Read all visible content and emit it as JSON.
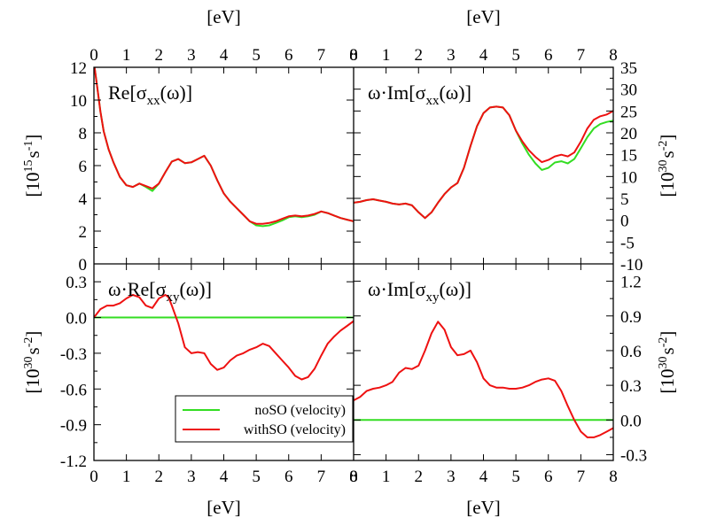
{
  "colors": {
    "noSO": "#33dd22",
    "withSO": "#ee1111",
    "zero": "#22cc22"
  },
  "legend": {
    "position": "bottom-right of lower-left panel",
    "entries": [
      {
        "label": "noSO (velocity)",
        "color": "#33dd22"
      },
      {
        "label": "withSO (velocity)",
        "color": "#ee1111"
      }
    ]
  },
  "chart_data": [
    {
      "type": "line",
      "panel": "top-left",
      "label": {
        "pre": "Re[σ",
        "sub": "xx",
        "post": "(ω)]"
      },
      "xlabel": "[eV]",
      "xlim": [
        0,
        8
      ],
      "xticks": [
        "0",
        "1",
        "2",
        "3",
        "4",
        "5",
        "6",
        "7",
        "8"
      ],
      "ylim": [
        0,
        12
      ],
      "yticks": [
        "0",
        "2",
        "4",
        "6",
        "8",
        "10",
        "12"
      ],
      "ylabel": {
        "pre": "[10",
        "sup1": "15",
        "mid": "s",
        "sup2": "-1",
        "post": "]"
      },
      "series": [
        {
          "name": "noSO (velocity)",
          "x": [
            0.02,
            0.1,
            0.2,
            0.3,
            0.45,
            0.6,
            0.8,
            1.0,
            1.2,
            1.4,
            1.6,
            1.8,
            2.0,
            2.2,
            2.4,
            2.6,
            2.8,
            3.0,
            3.2,
            3.4,
            3.6,
            3.8,
            4.0,
            4.2,
            4.4,
            4.6,
            4.8,
            5.0,
            5.2,
            5.4,
            5.6,
            5.8,
            6.0,
            6.2,
            6.4,
            6.6,
            6.8,
            7.0,
            7.2,
            7.4,
            7.6,
            7.8,
            8.0
          ],
          "y": [
            12.0,
            10.8,
            9.3,
            8.1,
            7.0,
            6.2,
            5.3,
            4.8,
            4.7,
            4.9,
            4.7,
            4.45,
            4.9,
            5.6,
            6.25,
            6.4,
            6.15,
            6.2,
            6.4,
            6.6,
            6.0,
            5.1,
            4.3,
            3.8,
            3.4,
            3.0,
            2.6,
            2.35,
            2.3,
            2.35,
            2.5,
            2.65,
            2.85,
            2.9,
            2.85,
            2.9,
            3.0,
            3.2,
            3.1,
            2.95,
            2.8,
            2.7,
            2.6
          ]
        },
        {
          "name": "withSO (velocity)",
          "x": [
            0.02,
            0.1,
            0.2,
            0.3,
            0.45,
            0.6,
            0.8,
            1.0,
            1.2,
            1.4,
            1.6,
            1.8,
            2.0,
            2.2,
            2.4,
            2.6,
            2.8,
            3.0,
            3.2,
            3.4,
            3.6,
            3.8,
            4.0,
            4.2,
            4.4,
            4.6,
            4.8,
            5.0,
            5.2,
            5.4,
            5.6,
            5.8,
            6.0,
            6.2,
            6.4,
            6.6,
            6.8,
            7.0,
            7.2,
            7.4,
            7.6,
            7.8,
            8.0
          ],
          "y": [
            12.0,
            10.8,
            9.3,
            8.1,
            7.0,
            6.2,
            5.3,
            4.8,
            4.7,
            4.9,
            4.75,
            4.6,
            4.9,
            5.6,
            6.25,
            6.4,
            6.15,
            6.2,
            6.4,
            6.6,
            6.0,
            5.1,
            4.3,
            3.8,
            3.4,
            3.0,
            2.6,
            2.45,
            2.45,
            2.5,
            2.6,
            2.75,
            2.9,
            2.95,
            2.9,
            2.95,
            3.05,
            3.2,
            3.1,
            2.95,
            2.8,
            2.7,
            2.6
          ]
        }
      ]
    },
    {
      "type": "line",
      "panel": "top-right",
      "label": {
        "pre": "ω·Im[σ",
        "sub": "xx",
        "post": "(ω)]"
      },
      "xlabel": "[eV]",
      "xlim": [
        0,
        8
      ],
      "xticks": [
        "0",
        "1",
        "2",
        "3",
        "4",
        "5",
        "6",
        "7",
        "8"
      ],
      "ylim": [
        -10,
        35
      ],
      "yticks": [
        "-10",
        "-5",
        "0",
        "5",
        "10",
        "15",
        "20",
        "25",
        "30",
        "35"
      ],
      "ylabel": {
        "pre": "[10",
        "sup1": "30",
        "mid": "s",
        "sup2": "-2",
        "post": "]"
      },
      "series": [
        {
          "name": "noSO (velocity)",
          "x": [
            0,
            0.2,
            0.4,
            0.6,
            0.8,
            1.0,
            1.2,
            1.4,
            1.6,
            1.8,
            2.0,
            2.2,
            2.4,
            2.6,
            2.8,
            3.0,
            3.2,
            3.4,
            3.6,
            3.8,
            4.0,
            4.2,
            4.4,
            4.6,
            4.8,
            5.0,
            5.2,
            5.4,
            5.6,
            5.8,
            6.0,
            6.2,
            6.4,
            6.6,
            6.8,
            7.0,
            7.2,
            7.4,
            7.6,
            7.8,
            8.0
          ],
          "y": [
            4.0,
            4.2,
            4.6,
            4.8,
            4.5,
            4.2,
            3.8,
            3.6,
            3.8,
            3.4,
            1.8,
            0.5,
            1.8,
            4.0,
            6.0,
            7.5,
            8.5,
            12.0,
            17.0,
            21.5,
            24.5,
            25.8,
            26.0,
            25.8,
            24.0,
            20.5,
            17.5,
            15.0,
            13.0,
            11.5,
            12.0,
            13.2,
            13.5,
            13.0,
            14.0,
            16.5,
            19.0,
            21.0,
            22.0,
            22.5,
            22.8
          ]
        },
        {
          "name": "withSO (velocity)",
          "x": [
            0,
            0.2,
            0.4,
            0.6,
            0.8,
            1.0,
            1.2,
            1.4,
            1.6,
            1.8,
            2.0,
            2.2,
            2.4,
            2.6,
            2.8,
            3.0,
            3.2,
            3.4,
            3.6,
            3.8,
            4.0,
            4.2,
            4.4,
            4.6,
            4.8,
            5.0,
            5.2,
            5.4,
            5.6,
            5.8,
            6.0,
            6.2,
            6.4,
            6.6,
            6.8,
            7.0,
            7.2,
            7.4,
            7.6,
            7.8,
            8.0
          ],
          "y": [
            4.0,
            4.2,
            4.6,
            4.8,
            4.5,
            4.2,
            3.8,
            3.6,
            3.8,
            3.4,
            1.8,
            0.5,
            1.8,
            4.0,
            6.0,
            7.5,
            8.5,
            12.0,
            17.0,
            21.5,
            24.5,
            25.8,
            26.0,
            25.8,
            24.0,
            20.5,
            18.0,
            16.0,
            14.5,
            13.3,
            13.8,
            14.6,
            15.0,
            14.6,
            15.5,
            18.0,
            21.0,
            23.0,
            23.8,
            24.2,
            25.0
          ]
        }
      ]
    },
    {
      "type": "line",
      "panel": "bottom-left",
      "label": {
        "pre": "ω·Re[σ",
        "sub": "xy",
        "post": "(ω)]"
      },
      "xlabel": "[eV]",
      "xlim": [
        0,
        8
      ],
      "xticks": [
        "0",
        "1",
        "2",
        "3",
        "4",
        "5",
        "6",
        "7",
        "8"
      ],
      "ylim": [
        -1.2,
        0.45
      ],
      "yticks": [
        "-1.2",
        "-0.9",
        "-0.6",
        "-0.3",
        "0.0",
        "0.3"
      ],
      "ylabel": {
        "pre": "[10",
        "sup1": "30",
        "mid": "s",
        "sup2": "-2",
        "post": "]"
      },
      "series": [
        {
          "name": "noSO (velocity)",
          "x": [
            0,
            8
          ],
          "y": [
            0.0,
            0.0
          ]
        },
        {
          "name": "withSO (velocity)",
          "x": [
            0,
            0.2,
            0.4,
            0.6,
            0.8,
            1.0,
            1.2,
            1.4,
            1.6,
            1.8,
            2.0,
            2.2,
            2.3,
            2.4,
            2.6,
            2.8,
            3.0,
            3.2,
            3.4,
            3.6,
            3.8,
            4.0,
            4.2,
            4.4,
            4.6,
            4.8,
            5.0,
            5.2,
            5.4,
            5.6,
            5.8,
            6.0,
            6.2,
            6.4,
            6.6,
            6.8,
            7.0,
            7.2,
            7.4,
            7.6,
            7.8,
            8.0
          ],
          "y": [
            0.0,
            0.07,
            0.1,
            0.1,
            0.12,
            0.16,
            0.19,
            0.17,
            0.1,
            0.08,
            0.16,
            0.19,
            0.17,
            0.1,
            -0.05,
            -0.25,
            -0.3,
            -0.29,
            -0.3,
            -0.39,
            -0.44,
            -0.42,
            -0.36,
            -0.32,
            -0.3,
            -0.27,
            -0.25,
            -0.22,
            -0.24,
            -0.3,
            -0.36,
            -0.42,
            -0.49,
            -0.52,
            -0.5,
            -0.43,
            -0.32,
            -0.22,
            -0.16,
            -0.11,
            -0.07,
            -0.03
          ]
        }
      ]
    },
    {
      "type": "line",
      "panel": "bottom-right",
      "label": {
        "pre": "ω·Im[σ",
        "sub": "xy",
        "post": "(ω)]"
      },
      "xlabel": "[eV]",
      "xlim": [
        0,
        8
      ],
      "xticks": [
        "0",
        "1",
        "2",
        "3",
        "4",
        "5",
        "6",
        "7",
        "8"
      ],
      "ylim": [
        -0.35,
        1.35
      ],
      "yticks": [
        "-0.3",
        "0.0",
        "0.3",
        "0.6",
        "0.9",
        "1.2"
      ],
      "ylabel": {
        "pre": "[10",
        "sup1": "30",
        "mid": "s",
        "sup2": "-2",
        "post": "]"
      },
      "series": [
        {
          "name": "noSO (velocity)",
          "x": [
            0,
            8
          ],
          "y": [
            0.0,
            0.0
          ]
        },
        {
          "name": "withSO (velocity)",
          "x": [
            0,
            0.2,
            0.4,
            0.6,
            0.8,
            1.0,
            1.2,
            1.4,
            1.6,
            1.8,
            2.0,
            2.2,
            2.4,
            2.6,
            2.8,
            3.0,
            3.2,
            3.4,
            3.6,
            3.8,
            4.0,
            4.2,
            4.4,
            4.6,
            4.8,
            5.0,
            5.2,
            5.4,
            5.6,
            5.8,
            6.0,
            6.2,
            6.4,
            6.6,
            6.8,
            7.0,
            7.2,
            7.4,
            7.6,
            7.8,
            8.0
          ],
          "y": [
            0.17,
            0.2,
            0.25,
            0.27,
            0.28,
            0.3,
            0.33,
            0.41,
            0.45,
            0.44,
            0.47,
            0.6,
            0.75,
            0.85,
            0.78,
            0.63,
            0.56,
            0.57,
            0.6,
            0.5,
            0.36,
            0.3,
            0.28,
            0.28,
            0.27,
            0.27,
            0.28,
            0.3,
            0.33,
            0.35,
            0.36,
            0.34,
            0.25,
            0.12,
            0.0,
            -0.1,
            -0.15,
            -0.15,
            -0.13,
            -0.1,
            -0.07
          ]
        }
      ]
    }
  ]
}
